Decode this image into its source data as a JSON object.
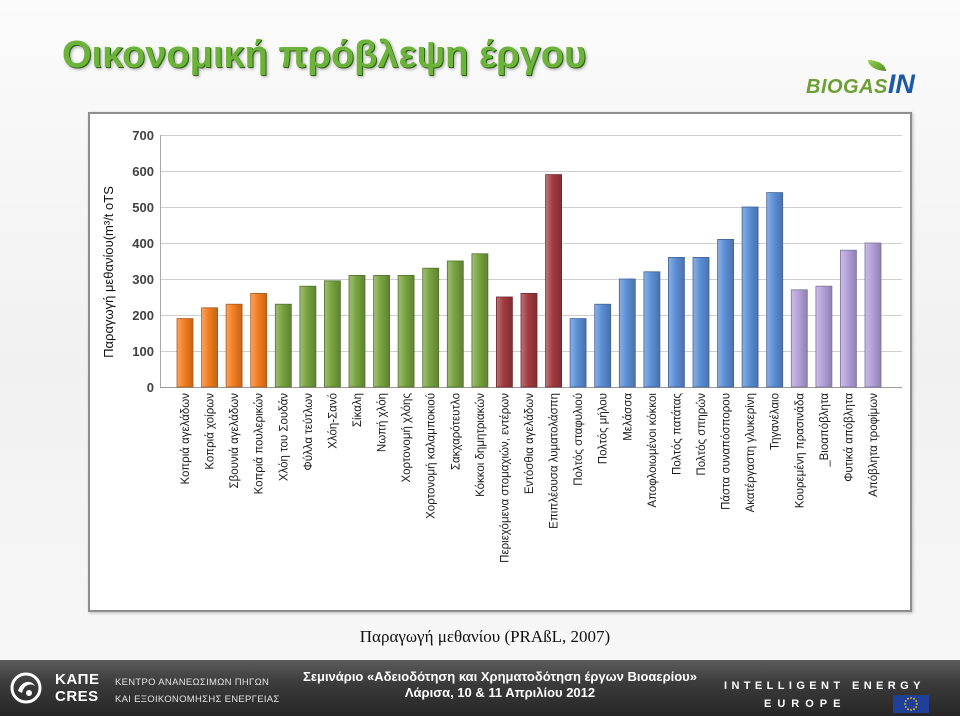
{
  "slide": {
    "title": "Οικονομική πρόβλεψη έργου",
    "caption": "Παραγωγή μεθανίου (PRAßL, 2007)"
  },
  "logo": {
    "part_a": "BIOGAS",
    "part_b": "IN"
  },
  "icons": {
    "logo_leaf": "leaf-icon",
    "org_emblem": "cres-emblem-icon",
    "eu_flag": "eu-flag-icon"
  },
  "chart_data": {
    "type": "bar",
    "ylabel": "Παραγωγή μεθανίου(m³/t oTS",
    "ylim": [
      0,
      700
    ],
    "yticks": [
      0,
      100,
      200,
      300,
      400,
      500,
      600,
      700
    ],
    "grid": true,
    "legend": false,
    "categories": [
      "Κοπριά αγελάδων",
      "Κοπριά χοίρων",
      "Σβουνιά αγελάδων",
      "Κοπριά πουλερικών",
      "Χλόη του Σουδάν",
      "Φύλλα τεύτλων",
      "Χλόη-Σανό",
      "Σίκαλη",
      "Νωπή χλόη",
      "Χορτονομή χλόης",
      "Χορτονομή καλαμποκιού",
      "Σακχαρότευτλο",
      "Κόκκοι δημητριακών",
      "Περιεχόμενα στομαχιών, εντέρων",
      "Εντόσθια αγελάδων",
      "Επιπλέουσα λυματολάσπη",
      "Πολτός σταφυλιού",
      "Πολτός μήλου",
      "Μελάσσα",
      "Αποφλοιωμένοι κόκκοι",
      "Πολτός πατάτας",
      "Πολτός σπηρών",
      "Πάστα συναπόσπορου",
      "Ακατέργαστη γλυκερίνη",
      "Τηγανέλαιο",
      "Κουρεμένη πρασινάδα",
      "_Βιοαπόβλητα",
      "Φυτικά απόβλητα",
      "Απόβλητα τροφίμων"
    ],
    "values": [
      190,
      220,
      230,
      260,
      230,
      280,
      295,
      310,
      310,
      310,
      330,
      350,
      370,
      250,
      260,
      590,
      190,
      230,
      300,
      320,
      360,
      360,
      410,
      500,
      540,
      270,
      280,
      380,
      400
    ],
    "bar_colors": [
      "#F47D1F",
      "#F47D1F",
      "#F47D1F",
      "#F47D1F",
      "#77A33E",
      "#77A33E",
      "#77A33E",
      "#77A33E",
      "#77A33E",
      "#77A33E",
      "#77A33E",
      "#77A33E",
      "#77A33E",
      "#A13A3F",
      "#A13A3F",
      "#A13A3F",
      "#5B8ED6",
      "#5B8ED6",
      "#5B8ED6",
      "#5B8ED6",
      "#5B8ED6",
      "#5B8ED6",
      "#5B8ED6",
      "#5B8ED6",
      "#5B8ED6",
      "#B3A1DA",
      "#B3A1DA",
      "#B3A1DA",
      "#B3A1DA"
    ]
  },
  "footer": {
    "org_logo": [
      "ΚΑΠΕ",
      "CRES"
    ],
    "org_name": [
      "ΚΕΝΤΡΟ ΑΝΑΝΕΩΣΙΜΩΝ ΠΗΓΩΝ",
      "ΚΑΙ ΕΞΟΙΚΟΝΟΜΗΣΗΣ ΕΝΕΡΓΕΙΑΣ"
    ],
    "seminar": "Σεμινάριο «Αδειοδότηση και Χρηματοδότηση έργων Βιοαερίου»",
    "place_date": "Λάρισα, 10 & 11 Απριλίου 2012",
    "programme": [
      "INTELLIGENT ENERGY",
      "EUROPE"
    ]
  }
}
